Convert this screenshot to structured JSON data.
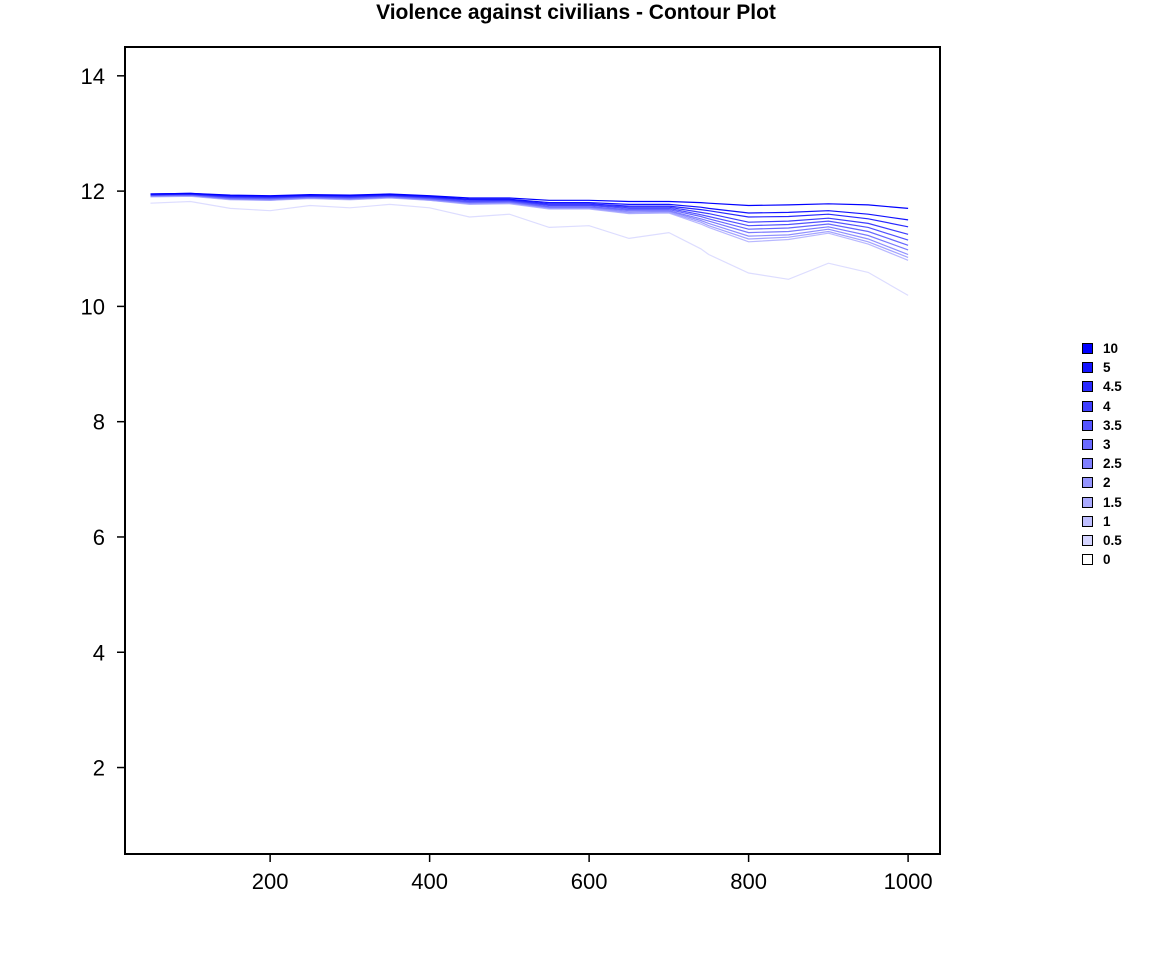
{
  "chart_data": {
    "type": "contour",
    "title": "Violence against civilians - Contour Plot",
    "xlabel": "",
    "ylabel": "",
    "xlim": [
      18,
      1040
    ],
    "ylim": [
      0.5,
      14.5
    ],
    "x_ticks": [
      200,
      400,
      600,
      800,
      1000
    ],
    "y_ticks": [
      2,
      4,
      6,
      8,
      10,
      12,
      14
    ],
    "grid": false,
    "legend_position": "right",
    "x": [
      50,
      100,
      150,
      200,
      250,
      300,
      350,
      400,
      450,
      500,
      550,
      600,
      650,
      700,
      740,
      750,
      800,
      850,
      900,
      950,
      1000
    ],
    "series": [
      {
        "level": "10",
        "color": "#0000FF",
        "y": [
          11.95,
          11.96,
          11.93,
          11.92,
          11.94,
          11.93,
          11.95,
          11.92,
          11.88,
          11.88,
          11.84,
          11.84,
          11.82,
          11.82,
          11.8,
          11.79,
          11.75,
          11.76,
          11.78,
          11.76,
          11.7
        ]
      },
      {
        "level": "5",
        "color": "#1212FF",
        "y": [
          11.95,
          11.96,
          11.92,
          11.91,
          11.93,
          11.92,
          11.94,
          11.91,
          11.86,
          11.86,
          11.8,
          11.8,
          11.77,
          11.77,
          11.72,
          11.7,
          11.62,
          11.63,
          11.66,
          11.6,
          11.5
        ]
      },
      {
        "level": "4.5",
        "color": "#2828FF",
        "y": [
          11.94,
          11.95,
          11.91,
          11.9,
          11.92,
          11.91,
          11.93,
          11.9,
          11.85,
          11.85,
          11.78,
          11.78,
          11.74,
          11.74,
          11.68,
          11.66,
          11.55,
          11.56,
          11.6,
          11.52,
          11.38
        ]
      },
      {
        "level": "4",
        "color": "#3C3CFF",
        "y": [
          11.94,
          11.95,
          11.9,
          11.89,
          11.91,
          11.9,
          11.92,
          11.89,
          11.84,
          11.84,
          11.76,
          11.76,
          11.72,
          11.72,
          11.63,
          11.61,
          11.46,
          11.48,
          11.53,
          11.44,
          11.25
        ]
      },
      {
        "level": "3.5",
        "color": "#5151FF",
        "y": [
          11.93,
          11.94,
          11.89,
          11.88,
          11.91,
          11.89,
          11.92,
          11.88,
          11.82,
          11.83,
          11.75,
          11.75,
          11.7,
          11.7,
          11.59,
          11.56,
          11.4,
          11.42,
          11.48,
          11.37,
          11.15
        ]
      },
      {
        "level": "3",
        "color": "#6666FF",
        "y": [
          11.93,
          11.94,
          11.88,
          11.87,
          11.9,
          11.88,
          11.91,
          11.87,
          11.81,
          11.82,
          11.73,
          11.73,
          11.68,
          11.68,
          11.56,
          11.52,
          11.34,
          11.36,
          11.43,
          11.3,
          11.06
        ]
      },
      {
        "level": "2.5",
        "color": "#7A7AFF",
        "y": [
          11.92,
          11.93,
          11.87,
          11.86,
          11.89,
          11.87,
          11.9,
          11.86,
          11.8,
          11.81,
          11.72,
          11.72,
          11.66,
          11.66,
          11.52,
          11.48,
          11.28,
          11.3,
          11.38,
          11.23,
          10.98
        ]
      },
      {
        "level": "2",
        "color": "#8F8FFF",
        "y": [
          11.91,
          11.92,
          11.86,
          11.85,
          11.88,
          11.86,
          11.89,
          11.85,
          11.79,
          11.8,
          11.71,
          11.71,
          11.64,
          11.65,
          11.49,
          11.44,
          11.22,
          11.24,
          11.34,
          11.17,
          10.9
        ]
      },
      {
        "level": "1.5",
        "color": "#A3A3FF",
        "y": [
          11.91,
          11.92,
          11.86,
          11.84,
          11.88,
          11.86,
          11.89,
          11.84,
          11.78,
          11.79,
          11.7,
          11.7,
          11.62,
          11.63,
          11.46,
          11.4,
          11.17,
          11.2,
          11.3,
          11.12,
          10.85
        ]
      },
      {
        "level": "1",
        "color": "#B8B8FF",
        "y": [
          11.9,
          11.91,
          11.85,
          11.84,
          11.87,
          11.85,
          11.88,
          11.84,
          11.77,
          11.78,
          11.69,
          11.69,
          11.61,
          11.62,
          11.43,
          11.37,
          11.12,
          11.16,
          11.27,
          11.08,
          10.8
        ]
      },
      {
        "level": "0.5",
        "color": "#DDDDFF",
        "y": [
          11.79,
          11.82,
          11.7,
          11.66,
          11.75,
          11.71,
          11.77,
          11.71,
          11.55,
          11.6,
          11.37,
          11.4,
          11.18,
          11.28,
          11.0,
          10.9,
          10.58,
          10.47,
          10.75,
          10.59,
          10.19
        ]
      }
    ],
    "legend": [
      {
        "label": "10",
        "color": "#0000FF"
      },
      {
        "label": "5",
        "color": "#1414FF"
      },
      {
        "label": "4.5",
        "color": "#2A2AFF"
      },
      {
        "label": "4",
        "color": "#3F3FFF"
      },
      {
        "label": "3.5",
        "color": "#5555FF"
      },
      {
        "label": "3",
        "color": "#6A6AFF"
      },
      {
        "label": "2.5",
        "color": "#7F7FFF"
      },
      {
        "label": "2",
        "color": "#9595FF"
      },
      {
        "label": "1.5",
        "color": "#AAAAFF"
      },
      {
        "label": "1",
        "color": "#BFBFFF"
      },
      {
        "label": "0.5",
        "color": "#D5D5FF"
      },
      {
        "label": "0",
        "color": "#FFFFFF"
      }
    ]
  }
}
